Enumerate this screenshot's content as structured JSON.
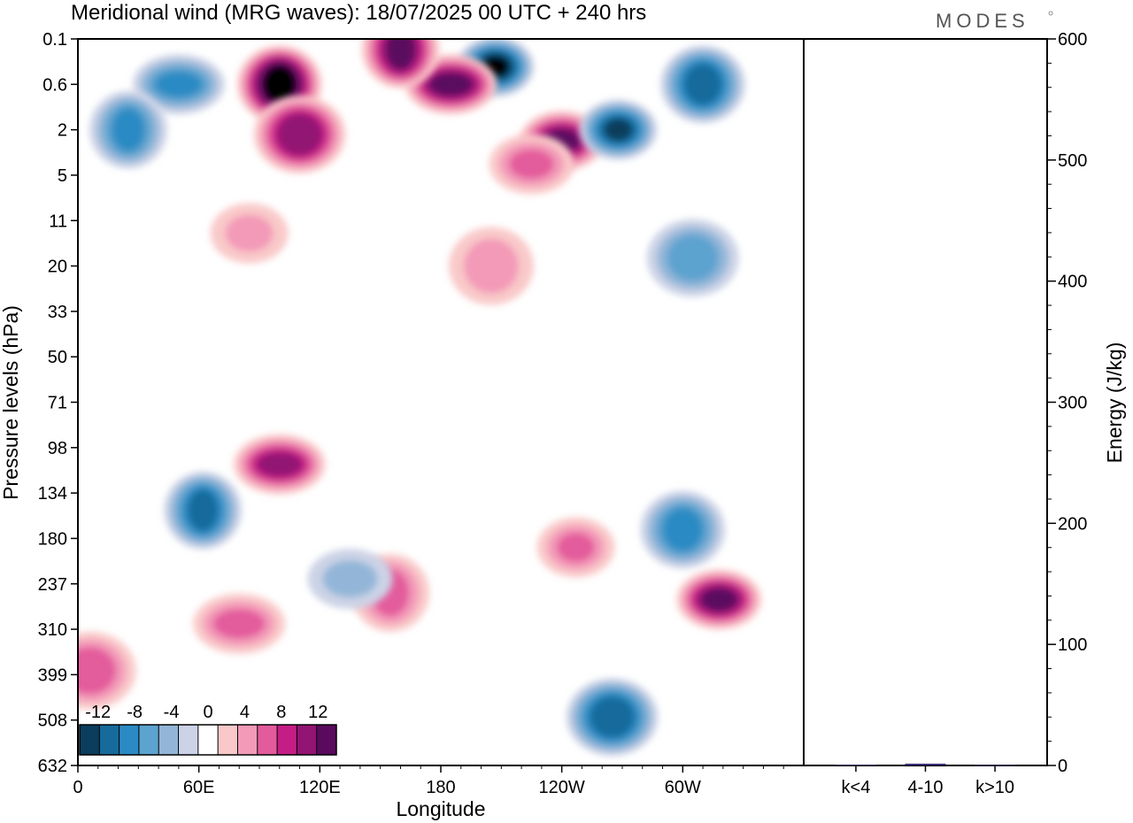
{
  "title": "Meridional wind (MRG waves):  18/07/2025  00 UTC  + 240 hrs",
  "brand": "MODES",
  "chart_data": [
    {
      "type": "heatmap",
      "title": "Meridional wind (MRG waves):  18/07/2025  00 UTC  + 240 hrs",
      "xlabel": "Longitude",
      "ylabel": "Pressure levels (hPa)",
      "x_ticks": [
        "0",
        "60E",
        "120E",
        "180",
        "120W",
        "60W"
      ],
      "x_tick_degrees": [
        0,
        60,
        120,
        180,
        240,
        300
      ],
      "xlim": [
        0,
        360
      ],
      "y_ticks": [
        "0.1",
        "0.6",
        "2",
        "5",
        "11",
        "20",
        "33",
        "50",
        "71",
        "98",
        "134",
        "180",
        "237",
        "310",
        "399",
        "508",
        "632"
      ],
      "y_axis_reversed": true,
      "colorbar": {
        "labels": [
          "-12",
          "-8",
          "-4",
          "0",
          "4",
          "8",
          "12"
        ],
        "levels": [
          -14,
          -12,
          -10,
          -8,
          -6,
          -4,
          -2,
          2,
          4,
          6,
          8,
          10,
          12,
          14
        ],
        "colors": [
          "#0b3d5c",
          "#176b9c",
          "#2b8ac3",
          "#5da3cf",
          "#93b6d8",
          "#ccd3e6",
          "#ffffff",
          "#f9c9c9",
          "#f39ab8",
          "#e35b9c",
          "#c41d85",
          "#921473",
          "#5a0a5e"
        ]
      },
      "regions": [
        {
          "lon": 207,
          "level": 0.3,
          "value": -14
        },
        {
          "lon": 100,
          "level": 0.6,
          "value": 14
        },
        {
          "lon": 185,
          "level": 0.6,
          "value": 12
        },
        {
          "lon": 160,
          "level": 0.15,
          "value": 12
        },
        {
          "lon": 240,
          "level": 2.5,
          "value": 12
        },
        {
          "lon": 110,
          "level": 2.2,
          "value": 10
        },
        {
          "lon": 268,
          "level": 2,
          "value": -12
        },
        {
          "lon": 310,
          "level": 0.6,
          "value": -10
        },
        {
          "lon": 50,
          "level": 0.6,
          "value": -8
        },
        {
          "lon": 25,
          "level": 2,
          "value": -8
        },
        {
          "lon": 225,
          "level": 4,
          "value": 6
        },
        {
          "lon": 305,
          "level": 18,
          "value": -6
        },
        {
          "lon": 85,
          "level": 13,
          "value": 4
        },
        {
          "lon": 205,
          "level": 20,
          "value": 4
        },
        {
          "lon": 100,
          "level": 110,
          "value": 10
        },
        {
          "lon": 62,
          "level": 150,
          "value": -10
        },
        {
          "lon": 318,
          "level": 260,
          "value": 12
        },
        {
          "lon": 265,
          "level": 500,
          "value": -10
        },
        {
          "lon": 247,
          "level": 190,
          "value": 6
        },
        {
          "lon": 300,
          "level": 170,
          "value": -8
        },
        {
          "lon": 80,
          "level": 300,
          "value": 6
        },
        {
          "lon": 155,
          "level": 250,
          "value": 6
        },
        {
          "lon": 135,
          "level": 230,
          "value": -4
        },
        {
          "lon": 6,
          "level": 390,
          "value": 6
        }
      ]
    },
    {
      "type": "bar",
      "categories": [
        "k<4",
        "4-10",
        "k>10"
      ],
      "values": [
        0.6,
        1.5,
        0.4
      ],
      "ylabel": "Energy (J/kg)",
      "ylim": [
        0,
        600
      ],
      "y_ticks": [
        "0",
        "100",
        "200",
        "300",
        "400",
        "500",
        "600"
      ],
      "color": "#3a2a78"
    }
  ]
}
